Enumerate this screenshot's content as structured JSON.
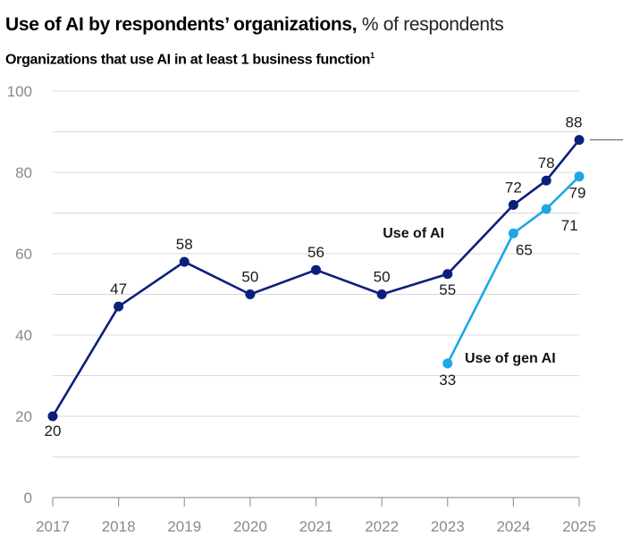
{
  "chart_data": {
    "type": "line",
    "title": "Use of AI by respondents’ organizations,",
    "title_suffix": "% of respondents",
    "subtitle": "Organizations that use AI in at least 1 business function",
    "subtitle_footnote": "1",
    "xlabel": "",
    "ylabel": "",
    "ylim": [
      0,
      100
    ],
    "yticks": [
      0,
      20,
      40,
      60,
      80,
      100
    ],
    "ygrid_step": 10,
    "grid": true,
    "xlim": [
      2017,
      2025
    ],
    "xticks": [
      "2017",
      "2018",
      "2019",
      "2020",
      "2021",
      "2022",
      "2023",
      "2024",
      "2025"
    ],
    "legend": "inline-labels",
    "series": [
      {
        "name": "Use of AI",
        "color": "#0b1f7c",
        "x": [
          2017,
          2018,
          2019,
          2020,
          2021,
          2022,
          2023,
          2024,
          2024.5,
          2025
        ],
        "values": [
          20,
          47,
          58,
          50,
          56,
          50,
          55,
          72,
          78,
          88
        ]
      },
      {
        "name": "Use of gen AI",
        "color": "#1ea7e6",
        "x": [
          2023,
          2024,
          2024.5,
          2025
        ],
        "values": [
          33,
          65,
          71,
          79
        ]
      }
    ]
  }
}
